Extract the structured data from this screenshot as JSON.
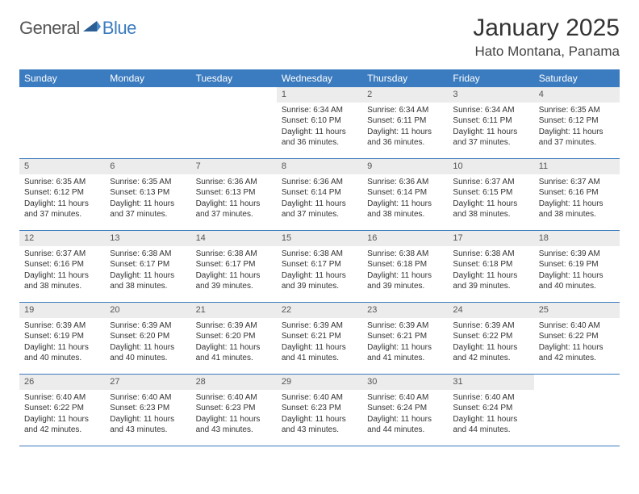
{
  "logo": {
    "general": "General",
    "blue": "Blue"
  },
  "title": "January 2025",
  "location": "Hato Montana, Panama",
  "colors": {
    "accent": "#3b7bbf",
    "header_bg": "#3b7bbf",
    "daynum_bg": "#ececec"
  },
  "weekdays": [
    "Sunday",
    "Monday",
    "Tuesday",
    "Wednesday",
    "Thursday",
    "Friday",
    "Saturday"
  ],
  "weeks": [
    [
      {
        "n": "",
        "sr": "",
        "ss": "",
        "dl": ""
      },
      {
        "n": "",
        "sr": "",
        "ss": "",
        "dl": ""
      },
      {
        "n": "",
        "sr": "",
        "ss": "",
        "dl": ""
      },
      {
        "n": "1",
        "sr": "Sunrise: 6:34 AM",
        "ss": "Sunset: 6:10 PM",
        "dl": "Daylight: 11 hours and 36 minutes."
      },
      {
        "n": "2",
        "sr": "Sunrise: 6:34 AM",
        "ss": "Sunset: 6:11 PM",
        "dl": "Daylight: 11 hours and 36 minutes."
      },
      {
        "n": "3",
        "sr": "Sunrise: 6:34 AM",
        "ss": "Sunset: 6:11 PM",
        "dl": "Daylight: 11 hours and 37 minutes."
      },
      {
        "n": "4",
        "sr": "Sunrise: 6:35 AM",
        "ss": "Sunset: 6:12 PM",
        "dl": "Daylight: 11 hours and 37 minutes."
      }
    ],
    [
      {
        "n": "5",
        "sr": "Sunrise: 6:35 AM",
        "ss": "Sunset: 6:12 PM",
        "dl": "Daylight: 11 hours and 37 minutes."
      },
      {
        "n": "6",
        "sr": "Sunrise: 6:35 AM",
        "ss": "Sunset: 6:13 PM",
        "dl": "Daylight: 11 hours and 37 minutes."
      },
      {
        "n": "7",
        "sr": "Sunrise: 6:36 AM",
        "ss": "Sunset: 6:13 PM",
        "dl": "Daylight: 11 hours and 37 minutes."
      },
      {
        "n": "8",
        "sr": "Sunrise: 6:36 AM",
        "ss": "Sunset: 6:14 PM",
        "dl": "Daylight: 11 hours and 37 minutes."
      },
      {
        "n": "9",
        "sr": "Sunrise: 6:36 AM",
        "ss": "Sunset: 6:14 PM",
        "dl": "Daylight: 11 hours and 38 minutes."
      },
      {
        "n": "10",
        "sr": "Sunrise: 6:37 AM",
        "ss": "Sunset: 6:15 PM",
        "dl": "Daylight: 11 hours and 38 minutes."
      },
      {
        "n": "11",
        "sr": "Sunrise: 6:37 AM",
        "ss": "Sunset: 6:16 PM",
        "dl": "Daylight: 11 hours and 38 minutes."
      }
    ],
    [
      {
        "n": "12",
        "sr": "Sunrise: 6:37 AM",
        "ss": "Sunset: 6:16 PM",
        "dl": "Daylight: 11 hours and 38 minutes."
      },
      {
        "n": "13",
        "sr": "Sunrise: 6:38 AM",
        "ss": "Sunset: 6:17 PM",
        "dl": "Daylight: 11 hours and 38 minutes."
      },
      {
        "n": "14",
        "sr": "Sunrise: 6:38 AM",
        "ss": "Sunset: 6:17 PM",
        "dl": "Daylight: 11 hours and 39 minutes."
      },
      {
        "n": "15",
        "sr": "Sunrise: 6:38 AM",
        "ss": "Sunset: 6:17 PM",
        "dl": "Daylight: 11 hours and 39 minutes."
      },
      {
        "n": "16",
        "sr": "Sunrise: 6:38 AM",
        "ss": "Sunset: 6:18 PM",
        "dl": "Daylight: 11 hours and 39 minutes."
      },
      {
        "n": "17",
        "sr": "Sunrise: 6:38 AM",
        "ss": "Sunset: 6:18 PM",
        "dl": "Daylight: 11 hours and 39 minutes."
      },
      {
        "n": "18",
        "sr": "Sunrise: 6:39 AM",
        "ss": "Sunset: 6:19 PM",
        "dl": "Daylight: 11 hours and 40 minutes."
      }
    ],
    [
      {
        "n": "19",
        "sr": "Sunrise: 6:39 AM",
        "ss": "Sunset: 6:19 PM",
        "dl": "Daylight: 11 hours and 40 minutes."
      },
      {
        "n": "20",
        "sr": "Sunrise: 6:39 AM",
        "ss": "Sunset: 6:20 PM",
        "dl": "Daylight: 11 hours and 40 minutes."
      },
      {
        "n": "21",
        "sr": "Sunrise: 6:39 AM",
        "ss": "Sunset: 6:20 PM",
        "dl": "Daylight: 11 hours and 41 minutes."
      },
      {
        "n": "22",
        "sr": "Sunrise: 6:39 AM",
        "ss": "Sunset: 6:21 PM",
        "dl": "Daylight: 11 hours and 41 minutes."
      },
      {
        "n": "23",
        "sr": "Sunrise: 6:39 AM",
        "ss": "Sunset: 6:21 PM",
        "dl": "Daylight: 11 hours and 41 minutes."
      },
      {
        "n": "24",
        "sr": "Sunrise: 6:39 AM",
        "ss": "Sunset: 6:22 PM",
        "dl": "Daylight: 11 hours and 42 minutes."
      },
      {
        "n": "25",
        "sr": "Sunrise: 6:40 AM",
        "ss": "Sunset: 6:22 PM",
        "dl": "Daylight: 11 hours and 42 minutes."
      }
    ],
    [
      {
        "n": "26",
        "sr": "Sunrise: 6:40 AM",
        "ss": "Sunset: 6:22 PM",
        "dl": "Daylight: 11 hours and 42 minutes."
      },
      {
        "n": "27",
        "sr": "Sunrise: 6:40 AM",
        "ss": "Sunset: 6:23 PM",
        "dl": "Daylight: 11 hours and 43 minutes."
      },
      {
        "n": "28",
        "sr": "Sunrise: 6:40 AM",
        "ss": "Sunset: 6:23 PM",
        "dl": "Daylight: 11 hours and 43 minutes."
      },
      {
        "n": "29",
        "sr": "Sunrise: 6:40 AM",
        "ss": "Sunset: 6:23 PM",
        "dl": "Daylight: 11 hours and 43 minutes."
      },
      {
        "n": "30",
        "sr": "Sunrise: 6:40 AM",
        "ss": "Sunset: 6:24 PM",
        "dl": "Daylight: 11 hours and 44 minutes."
      },
      {
        "n": "31",
        "sr": "Sunrise: 6:40 AM",
        "ss": "Sunset: 6:24 PM",
        "dl": "Daylight: 11 hours and 44 minutes."
      },
      {
        "n": "",
        "sr": "",
        "ss": "",
        "dl": ""
      }
    ]
  ]
}
